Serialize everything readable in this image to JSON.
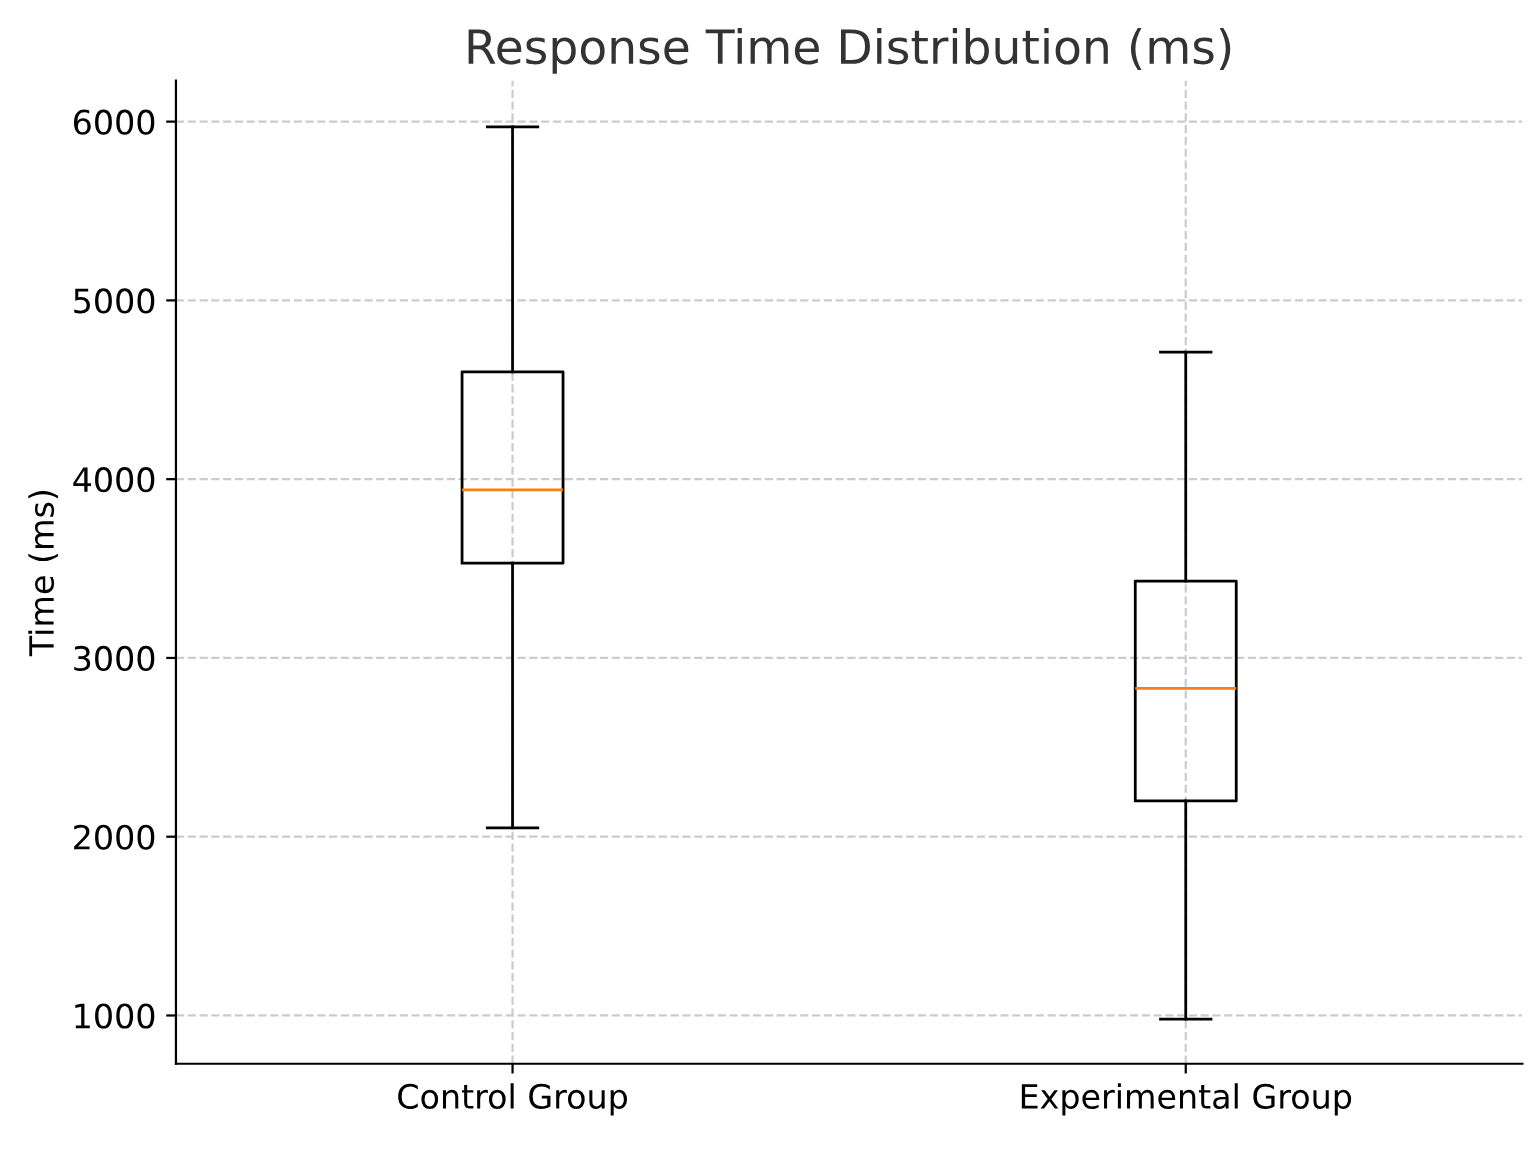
{
  "chart_data": {
    "type": "box",
    "title": "Response Time Distribution (ms)",
    "ylabel": "Time (ms)",
    "categories": [
      "Control Group",
      "Experimental Group"
    ],
    "boxes": [
      {
        "low": 2050,
        "q1": 3530,
        "median": 3940,
        "q3": 4600,
        "high": 5970
      },
      {
        "low": 980,
        "q1": 2200,
        "median": 2830,
        "q3": 3430,
        "high": 4710
      }
    ],
    "color": "#000000",
    "ylim": [
      730,
      6230
    ],
    "yticks": [
      1000,
      2000,
      3000,
      4000,
      5000,
      6000
    ],
    "grid": true
  }
}
